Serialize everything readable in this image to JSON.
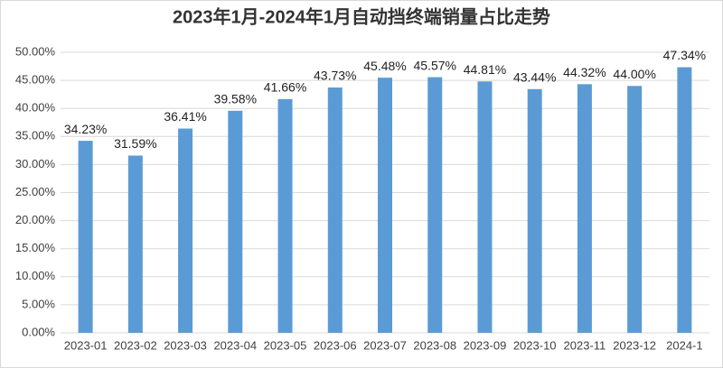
{
  "chart_data": {
    "type": "bar",
    "title": "2023年1月-2024年1月自动挡终端销量占比走势",
    "categories": [
      "2023-01",
      "2023-02",
      "2023-03",
      "2023-04",
      "2023-05",
      "2023-06",
      "2023-07",
      "2023-08",
      "2023-09",
      "2023-10",
      "2023-11",
      "2023-12",
      "2024-1"
    ],
    "values": [
      34.23,
      31.59,
      36.41,
      39.58,
      41.66,
      43.73,
      45.48,
      45.57,
      44.81,
      43.44,
      44.32,
      44.0,
      47.34
    ],
    "value_labels": [
      "34.23%",
      "31.59%",
      "36.41%",
      "39.58%",
      "41.66%",
      "43.73%",
      "45.48%",
      "45.57%",
      "44.81%",
      "43.44%",
      "44.32%",
      "44.00%",
      "47.34%"
    ],
    "color": "#5b9bd5",
    "ylim": [
      0,
      50
    ],
    "yticks": [
      {
        "value": 0,
        "label": "0.00%"
      },
      {
        "value": 5,
        "label": "5.00%"
      },
      {
        "value": 10,
        "label": "10.00%"
      },
      {
        "value": 15,
        "label": "15.00%"
      },
      {
        "value": 20,
        "label": "20.00%"
      },
      {
        "value": 25,
        "label": "25.00%"
      },
      {
        "value": 30,
        "label": "30.00%"
      },
      {
        "value": 35,
        "label": "35.00%"
      },
      {
        "value": 40,
        "label": "40.00%"
      },
      {
        "value": 45,
        "label": "45.00%"
      },
      {
        "value": 50,
        "label": "50.00%"
      }
    ],
    "grid": true
  }
}
